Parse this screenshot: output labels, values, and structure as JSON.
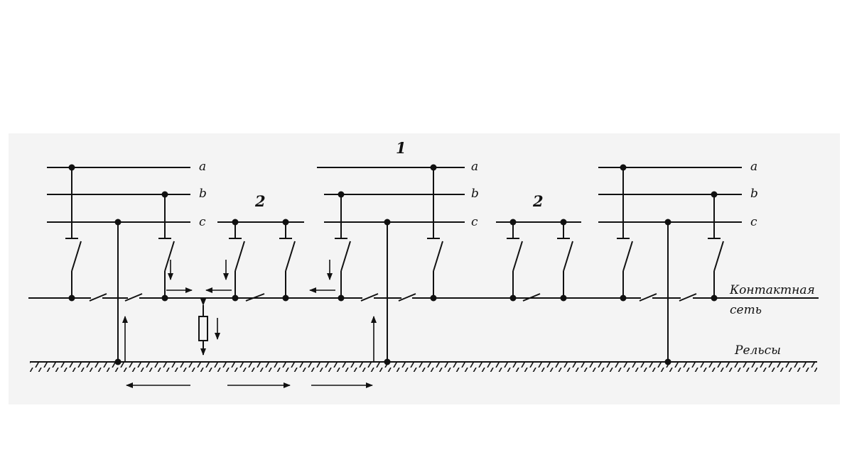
{
  "diagram": {
    "phase_labels": {
      "a": "a",
      "b": "b",
      "c": "c"
    },
    "substation_label": "1",
    "post_label": "2",
    "contact_network_label_line1": "Контактная",
    "contact_network_label_line2": "сеть",
    "rails_label": "Рельсы"
  },
  "colors": {
    "ink": "#111111",
    "panel": "#f4f4f4"
  }
}
